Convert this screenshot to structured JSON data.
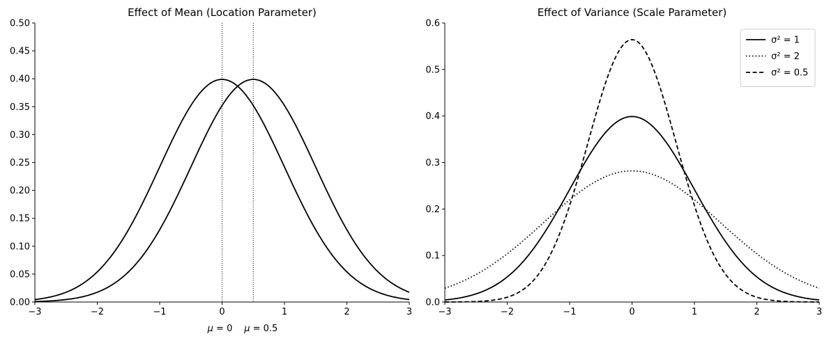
{
  "chart_data": [
    {
      "type": "line",
      "title": "Effect of Mean (Location Parameter)",
      "xlim": [
        -3,
        3
      ],
      "ylim": [
        0,
        0.5
      ],
      "xticks": [
        -3,
        -2,
        -1,
        0,
        1,
        2,
        3
      ],
      "yticks": [
        0.0,
        0.05,
        0.1,
        0.15,
        0.2,
        0.25,
        0.3,
        0.35,
        0.4,
        0.45,
        0.5
      ],
      "xtick_labels": [
        "−3",
        "−2",
        "−1",
        "0",
        "1",
        "2",
        "3"
      ],
      "ytick_labels": [
        "0.00",
        "0.05",
        "0.10",
        "0.15",
        "0.20",
        "0.25",
        "0.30",
        "0.35",
        "0.40",
        "0.45",
        "0.50"
      ],
      "series": [
        {
          "mean": 0,
          "variance": 1,
          "style": "solid"
        },
        {
          "mean": 0.5,
          "variance": 1,
          "style": "solid"
        }
      ],
      "vlines": [
        0,
        0.5
      ],
      "annotations": [
        {
          "x": 0,
          "prefix": "μ",
          "suffix": " = 0"
        },
        {
          "x": 0.5,
          "prefix": "μ",
          "suffix": " = 0.5"
        }
      ],
      "legend": "none",
      "grid": false
    },
    {
      "type": "line",
      "title": "Effect of Variance (Scale Parameter)",
      "xlim": [
        -3,
        3
      ],
      "ylim": [
        0,
        0.6
      ],
      "xticks": [
        -3,
        -2,
        -1,
        0,
        1,
        2,
        3
      ],
      "yticks": [
        0.0,
        0.1,
        0.2,
        0.3,
        0.4,
        0.5,
        0.6
      ],
      "xtick_labels": [
        "−3",
        "−2",
        "−1",
        "0",
        "1",
        "2",
        "3"
      ],
      "ytick_labels": [
        "0.0",
        "0.1",
        "0.2",
        "0.3",
        "0.4",
        "0.5",
        "0.6"
      ],
      "series": [
        {
          "name": "σ² = 1",
          "mean": 0,
          "variance": 1,
          "style": "solid"
        },
        {
          "name": "σ² = 2",
          "mean": 0,
          "variance": 2,
          "style": "dotted"
        },
        {
          "name": "σ² = 0.5",
          "mean": 0,
          "variance": 0.5,
          "style": "dashed"
        }
      ],
      "legend": "top-right",
      "grid": false
    }
  ]
}
